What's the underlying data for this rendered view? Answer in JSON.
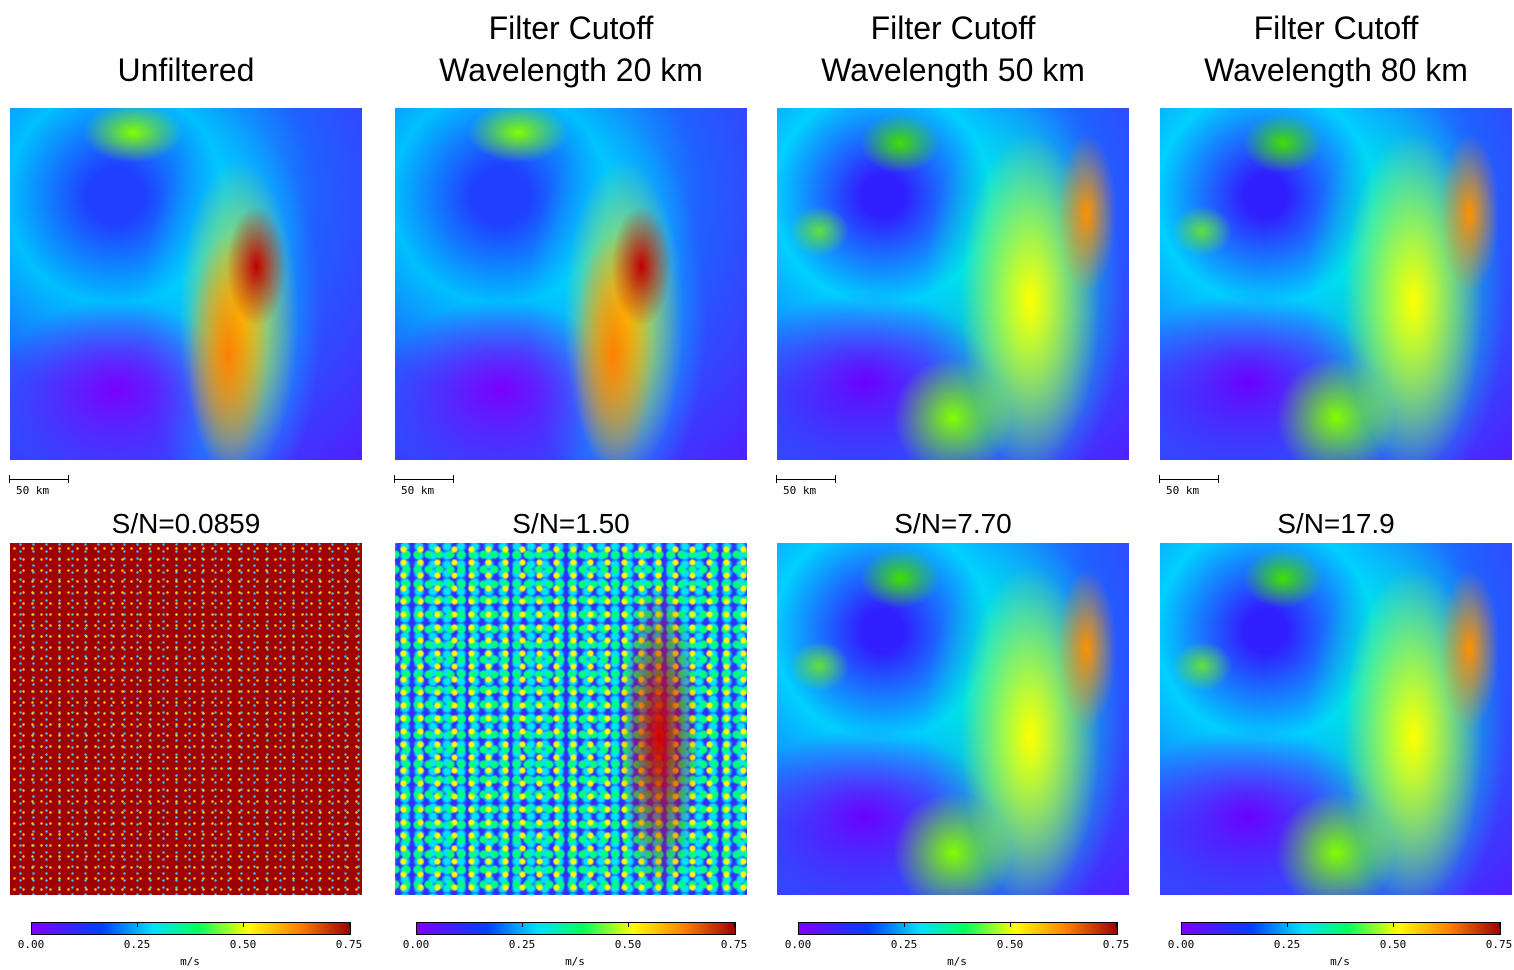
{
  "panels": [
    {
      "title": [
        "Unfiltered"
      ],
      "scale_bar": "50 km",
      "sn": "S/N=0.0859",
      "colorbar": {
        "ticks": [
          "0.00",
          "0.25",
          "0.50",
          "0.75"
        ],
        "unit": "m/s"
      }
    },
    {
      "title": [
        "Filter Cutoff",
        "Wavelength 20 km"
      ],
      "scale_bar": "50 km",
      "sn": "S/N=1.50",
      "colorbar": {
        "ticks": [
          "0.00",
          "0.25",
          "0.50",
          "0.75"
        ],
        "unit": "m/s"
      }
    },
    {
      "title": [
        "Filter Cutoff",
        "Wavelength 50 km"
      ],
      "scale_bar": "50 km",
      "sn": "S/N=7.70",
      "colorbar": {
        "ticks": [
          "0.00",
          "0.25",
          "0.50",
          "0.75"
        ],
        "unit": "m/s"
      }
    },
    {
      "title": [
        "Filter Cutoff",
        "Wavelength 80 km"
      ],
      "scale_bar": "50 km",
      "sn": "S/N=17.9",
      "colorbar": {
        "ticks": [
          "0.00",
          "0.25",
          "0.50",
          "0.75"
        ],
        "unit": "m/s"
      }
    }
  ]
}
